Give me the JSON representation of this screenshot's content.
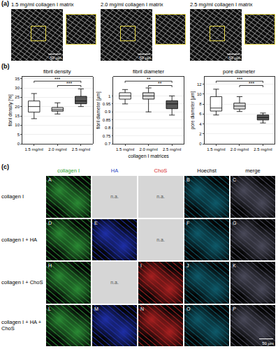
{
  "panel_a": {
    "label": "(a)",
    "images": [
      {
        "title": "1.5 mg/ml collagen I matrix",
        "scale_bar": "50 µm"
      },
      {
        "title": "2.0 mg/ml collagen I matrix",
        "scale_bar": "50 µm"
      },
      {
        "title": "2.5 mg/ml collagen I matrix",
        "scale_bar": "50 µm"
      }
    ]
  },
  "panel_b_label": "(b)",
  "chart_data": [
    {
      "type": "box",
      "title": "fibril density",
      "y_label": "fibril density [%]",
      "categories": [
        "1.5 mg/ml",
        "2.0 mg/ml",
        "2.5 mg/ml"
      ],
      "boxes": {
        "min": [
          13.5,
          16,
          20
        ],
        "q1": [
          17,
          17.5,
          21.5
        ],
        "median": [
          20,
          18.3,
          23
        ],
        "q3": [
          23,
          19.5,
          25.5
        ],
        "max": [
          27,
          22,
          29.5
        ]
      },
      "colors": [
        "#ffffff",
        "#d9d9d9",
        "#595959"
      ],
      "ylim": [
        0,
        36
      ],
      "yticks": [
        0,
        5,
        10,
        15,
        20,
        25,
        30,
        35
      ],
      "grid": true,
      "significance": [
        {
          "from": "1.5 mg/ml",
          "to": "2.5 mg/ml",
          "label": "***"
        },
        {
          "from": "2.0 mg/ml",
          "to": "2.5 mg/ml",
          "label": "***"
        }
      ]
    },
    {
      "type": "box",
      "title": "fibril diameter",
      "y_label": "fibril diameter [µm]",
      "x_label": "collagen I matrices",
      "categories": [
        "1.5 mg/ml",
        "2.0 mg/ml",
        "2.5 mg/ml"
      ],
      "boxes": {
        "min": [
          0.95,
          0.9,
          0.88
        ],
        "q1": [
          0.98,
          0.98,
          0.92
        ],
        "median": [
          1.0,
          1.0,
          0.95
        ],
        "q3": [
          1.02,
          1.02,
          0.97
        ],
        "max": [
          1.04,
          1.05,
          1.0
        ]
      },
      "colors": [
        "#ffffff",
        "#d9d9d9",
        "#595959"
      ],
      "ylim": [
        0.7,
        1.12
      ],
      "yticks": [
        0.7,
        0.75,
        0.8,
        0.85,
        0.9,
        0.95,
        1
      ],
      "grid": true,
      "significance": [
        {
          "from": "1.5 mg/ml",
          "to": "2.5 mg/ml",
          "label": "**"
        },
        {
          "from": "2.0 mg/ml",
          "to": "2.5 mg/ml",
          "label": "**"
        }
      ]
    },
    {
      "type": "box",
      "title": "pore diameter",
      "y_label": "pore diameter [µm]",
      "categories": [
        "1.5 mg/ml",
        "2.0 mg/ml",
        "2.5 mg/ml"
      ],
      "boxes": {
        "min": [
          5.8,
          6.5,
          4.2
        ],
        "q1": [
          6.6,
          7.0,
          4.8
        ],
        "median": [
          7.2,
          7.6,
          5.3
        ],
        "q3": [
          9.5,
          8.2,
          5.8
        ],
        "max": [
          11,
          9.5,
          6.2
        ]
      },
      "colors": [
        "#ffffff",
        "#d9d9d9",
        "#595959"
      ],
      "ylim": [
        0,
        13.5
      ],
      "yticks": [
        0,
        2,
        4,
        6,
        8,
        10,
        12
      ],
      "grid": true,
      "significance": [
        {
          "from": "1.5 mg/ml",
          "to": "2.5 mg/ml",
          "label": "***"
        },
        {
          "from": "2.0 mg/ml",
          "to": "2.5 mg/ml",
          "label": "***"
        }
      ]
    }
  ],
  "panel_c": {
    "label": "(c)",
    "columns": [
      {
        "label": "collagen I",
        "color": "#2ca02c"
      },
      {
        "label": "HA",
        "color": "#1f3fbf"
      },
      {
        "label": "ChoS",
        "color": "#d62728"
      },
      {
        "label": "Hoechst",
        "color": "#000000"
      },
      {
        "label": "merge",
        "color": "#000000"
      }
    ],
    "rows": [
      {
        "label": "collagen I",
        "cells": [
          "A",
          "n.a.",
          "n.a.",
          "B",
          "C"
        ]
      },
      {
        "label": "collagen I + HA",
        "cells": [
          "D",
          "E",
          "n.a.",
          "F",
          "G"
        ]
      },
      {
        "label": "collagen I + ChoS",
        "cells": [
          "H",
          "n.a.",
          "I",
          "J",
          "K"
        ]
      },
      {
        "label": "collagen I + HA + ChoS",
        "cells": [
          "L",
          "M",
          "N",
          "O",
          "P"
        ]
      }
    ],
    "scale_bar": "50 µm"
  }
}
